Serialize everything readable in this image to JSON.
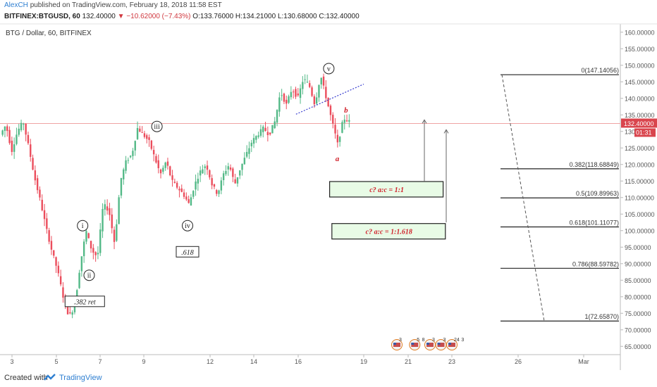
{
  "header": {
    "author": "AlexCH",
    "published_text": "published on TradingView.com, February 18, 2018 11:58 EST",
    "symbol": "BITFINEX:BTGUSD, 60",
    "last": "132.40000",
    "change": "−10.62000 (−7.43%)",
    "o": "O:133.76000",
    "h": "H:134.21000",
    "l": "L:130.68000",
    "c": "C:132.40000"
  },
  "chart_data": {
    "type": "candlestick",
    "title": "BTG / Dollar, 60, BITFINEX",
    "x_ticks": [
      "3",
      "5",
      "7",
      "9",
      "12",
      "14",
      "16",
      "19",
      "21",
      "23",
      "26",
      "Mar"
    ],
    "y_ticks": [
      "160.00000",
      "155.00000",
      "150.00000",
      "145.00000",
      "140.00000",
      "135.00000",
      "130",
      "125.00000",
      "120.00000",
      "115.00000",
      "110.00000",
      "105.00000",
      "100.00000",
      "95.00000",
      "90.00000",
      "85.00000",
      "80.00000",
      "75.00000",
      "70.00000",
      "65.00000"
    ],
    "ylim": [
      62.5,
      162.5
    ],
    "price_line": 132.4,
    "price_label": "132.40000",
    "countdown": "01:31",
    "price_path": [
      129,
      132,
      124,
      130,
      133,
      125,
      116,
      109,
      101,
      94,
      88,
      80,
      74,
      77,
      90,
      100,
      94,
      92,
      108,
      106,
      96,
      115,
      121,
      123,
      131,
      129,
      127,
      122,
      117,
      121,
      115,
      113,
      111,
      108,
      114,
      118,
      120,
      114,
      111,
      117,
      120,
      114,
      119,
      123,
      127,
      129,
      131,
      129,
      133,
      142,
      138,
      143,
      140,
      146,
      144,
      138,
      147,
      140,
      133,
      126,
      134,
      133
    ],
    "fib_levels": [
      {
        "label": "0(147.14056)",
        "value": 147.14
      },
      {
        "label": "0.382(118.68849)",
        "value": 118.69
      },
      {
        "label": "0.5(109.89963)",
        "value": 109.9
      },
      {
        "label": "0.618(101.11077)",
        "value": 101.11
      },
      {
        "label": "0.786(88.59782)",
        "value": 88.6
      },
      {
        "label": "1(72.65870)",
        "value": 72.66
      }
    ],
    "wave_labels": [
      {
        "text": "i",
        "x": 6.2,
        "y": 101.5
      },
      {
        "text": "ii",
        "x": 6.5,
        "y": 86.5
      },
      {
        "text": "iii",
        "x": 9.6,
        "y": 131.5
      },
      {
        "text": "iv",
        "x": 11.0,
        "y": 101.5
      },
      {
        "text": "v",
        "x": 17.4,
        "y": 149.0
      }
    ],
    "annotations": [
      {
        "text": ".382 ret",
        "x": 6.3,
        "y": 78.5
      },
      {
        "text": ".618",
        "x": 11.0,
        "y": 93.5
      },
      {
        "text": "b",
        "x": 18.1,
        "y": 135.7
      },
      {
        "text": "a",
        "x": 17.7,
        "y": 121.0
      }
    ],
    "target_boxes": [
      {
        "text": "c? a:c = 1:1",
        "x": 20.3,
        "y": 112.5
      },
      {
        "text": "c? a:c = 1:1.618",
        "x": 20.4,
        "y": 99.8
      }
    ],
    "event_badges": [
      {
        "text": "3",
        "x": 20.5
      },
      {
        "text": "5",
        "x": 21.3
      },
      {
        "text": "8",
        "x": 21.6
      },
      {
        "text": "3",
        "x": 22.0
      },
      {
        "text": "3",
        "x": 22.5
      },
      {
        "text": "24",
        "x": 23.0
      },
      {
        "text": "3",
        "x": 23.4
      }
    ]
  },
  "footer": {
    "created_with": "Created with",
    "brand": "TradingView"
  }
}
